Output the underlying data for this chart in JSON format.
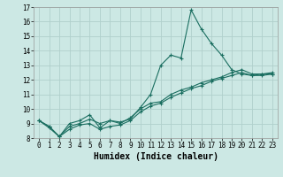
{
  "xlabel": "Humidex (Indice chaleur)",
  "ylabel": "",
  "bg_color": "#cce8e4",
  "grid_color": "#b0d0cc",
  "line_color": "#1a6e60",
  "xlim": [
    -0.5,
    23.5
  ],
  "ylim": [
    8,
    17
  ],
  "xticks": [
    0,
    1,
    2,
    3,
    4,
    5,
    6,
    7,
    8,
    9,
    10,
    11,
    12,
    13,
    14,
    15,
    16,
    17,
    18,
    19,
    20,
    21,
    22,
    23
  ],
  "yticks": [
    8,
    9,
    10,
    11,
    12,
    13,
    14,
    15,
    16,
    17
  ],
  "series1_x": [
    0,
    1,
    2,
    3,
    4,
    5,
    6,
    7,
    8,
    9,
    10,
    11,
    12,
    13,
    14,
    15,
    16,
    17,
    18,
    19,
    20,
    21,
    22,
    23
  ],
  "series1_y": [
    9.2,
    8.8,
    8.1,
    9.0,
    9.2,
    9.6,
    8.7,
    9.2,
    9.1,
    9.3,
    10.1,
    11.0,
    13.0,
    13.7,
    13.5,
    16.8,
    15.5,
    14.5,
    13.7,
    12.7,
    12.4,
    12.3,
    12.4,
    12.4
  ],
  "series2_x": [
    0,
    1,
    2,
    3,
    4,
    5,
    6,
    7,
    8,
    9,
    10,
    11,
    12,
    13,
    14,
    15,
    16,
    17,
    18,
    19,
    20,
    21,
    22,
    23
  ],
  "series2_y": [
    9.2,
    8.8,
    8.1,
    8.8,
    9.0,
    9.3,
    9.0,
    9.2,
    9.0,
    9.4,
    10.0,
    10.4,
    10.5,
    11.0,
    11.3,
    11.5,
    11.8,
    12.0,
    12.2,
    12.5,
    12.7,
    12.4,
    12.4,
    12.5
  ],
  "series3_x": [
    0,
    1,
    2,
    3,
    4,
    5,
    6,
    7,
    8,
    9,
    10,
    11,
    12,
    13,
    14,
    15,
    16,
    17,
    18,
    19,
    20,
    21,
    22,
    23
  ],
  "series3_y": [
    9.2,
    8.7,
    8.1,
    8.6,
    8.9,
    9.0,
    8.6,
    8.8,
    8.9,
    9.2,
    9.8,
    10.2,
    10.4,
    10.8,
    11.1,
    11.4,
    11.6,
    11.9,
    12.1,
    12.3,
    12.5,
    12.3,
    12.3,
    12.4
  ],
  "tick_fontsize": 5.5,
  "xlabel_fontsize": 7,
  "lw": 0.8,
  "ms": 2.5
}
